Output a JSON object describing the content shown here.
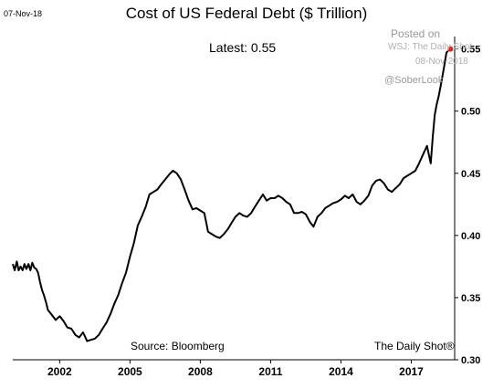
{
  "header": {
    "date_stamp": "07-Nov-18",
    "title": "Cost of US Federal Debt ($ Trillion)",
    "latest_label": "Latest:  0.55"
  },
  "footer": {
    "source": "Source: Bloomberg",
    "brand": "The Daily Shot®"
  },
  "watermark": {
    "line1": "Posted on",
    "line2": "WSJ: The Daily Shot",
    "line3": "08-Nov-2018",
    "line4": "@SoberLook"
  },
  "colors": {
    "line": "#000000",
    "last_point": "#e8201a",
    "axis": "#000000"
  },
  "chart_data": {
    "type": "line",
    "title": "Cost of US Federal Debt ($ Trillion)",
    "xlabel": "",
    "ylabel": "",
    "xlim": [
      2000.0,
      2018.85
    ],
    "ylim": [
      0.3,
      0.56
    ],
    "xticks": [
      2002,
      2005,
      2008,
      2011,
      2014,
      2017
    ],
    "xtick_labels": [
      "2002",
      "2005",
      "2008",
      "2011",
      "2014",
      "2017"
    ],
    "yticks": [
      0.3,
      0.35,
      0.4,
      0.45,
      0.5,
      0.55
    ],
    "ytick_labels": [
      "0.30",
      "0.35",
      "0.40",
      "0.45",
      "0.50",
      "0.55"
    ],
    "grid": false,
    "y_axis_side": "right",
    "latest": 0.55,
    "series": [
      {
        "x": [
          2000.0,
          2000.08,
          2000.17,
          2000.25,
          2000.33,
          2000.42,
          2000.5,
          2000.58,
          2000.67,
          2000.75,
          2000.83,
          2000.92,
          2001.0,
          2001.08,
          2001.17,
          2001.25,
          2001.33,
          2001.42,
          2001.5,
          2001.67,
          2001.83,
          2002.0,
          2002.17,
          2002.33,
          2002.5,
          2002.67,
          2002.83,
          2003.0,
          2003.17,
          2003.33,
          2003.5,
          2003.67,
          2003.83,
          2004.0,
          2004.17,
          2004.33,
          2004.5,
          2004.67,
          2004.83,
          2005.0,
          2005.17,
          2005.33,
          2005.5,
          2005.67,
          2005.83,
          2006.0,
          2006.17,
          2006.33,
          2006.5,
          2006.67,
          2006.83,
          2007.0,
          2007.17,
          2007.33,
          2007.5,
          2007.67,
          2007.83,
          2008.0,
          2008.17,
          2008.33,
          2008.5,
          2008.67,
          2008.83,
          2009.0,
          2009.17,
          2009.33,
          2009.5,
          2009.67,
          2009.83,
          2010.0,
          2010.17,
          2010.33,
          2010.5,
          2010.67,
          2010.83,
          2011.0,
          2011.17,
          2011.33,
          2011.5,
          2011.67,
          2011.83,
          2012.0,
          2012.17,
          2012.33,
          2012.5,
          2012.67,
          2012.83,
          2013.0,
          2013.17,
          2013.33,
          2013.5,
          2013.67,
          2013.83,
          2014.0,
          2014.17,
          2014.33,
          2014.5,
          2014.67,
          2014.83,
          2015.0,
          2015.17,
          2015.33,
          2015.5,
          2015.67,
          2015.83,
          2016.0,
          2016.17,
          2016.33,
          2016.5,
          2016.67,
          2016.83,
          2017.0,
          2017.17,
          2017.33,
          2017.5,
          2017.67,
          2017.83,
          2017.92,
          2018.0,
          2018.08,
          2018.17,
          2018.25,
          2018.33,
          2018.42,
          2018.5,
          2018.58,
          2018.67
        ],
        "y": [
          0.377,
          0.372,
          0.379,
          0.372,
          0.375,
          0.372,
          0.377,
          0.373,
          0.377,
          0.372,
          0.378,
          0.374,
          0.373,
          0.37,
          0.362,
          0.356,
          0.352,
          0.346,
          0.34,
          0.336,
          0.332,
          0.335,
          0.331,
          0.326,
          0.325,
          0.32,
          0.318,
          0.322,
          0.315,
          0.316,
          0.317,
          0.32,
          0.325,
          0.33,
          0.337,
          0.345,
          0.352,
          0.362,
          0.37,
          0.383,
          0.394,
          0.408,
          0.415,
          0.423,
          0.433,
          0.435,
          0.437,
          0.441,
          0.445,
          0.449,
          0.452,
          0.45,
          0.445,
          0.437,
          0.428,
          0.421,
          0.422,
          0.42,
          0.418,
          0.403,
          0.401,
          0.399,
          0.398,
          0.401,
          0.405,
          0.41,
          0.415,
          0.418,
          0.416,
          0.415,
          0.418,
          0.423,
          0.428,
          0.433,
          0.428,
          0.43,
          0.43,
          0.432,
          0.43,
          0.427,
          0.425,
          0.418,
          0.418,
          0.419,
          0.417,
          0.411,
          0.407,
          0.415,
          0.418,
          0.422,
          0.424,
          0.426,
          0.427,
          0.429,
          0.432,
          0.43,
          0.433,
          0.427,
          0.425,
          0.428,
          0.432,
          0.44,
          0.444,
          0.445,
          0.442,
          0.437,
          0.435,
          0.438,
          0.441,
          0.446,
          0.448,
          0.45,
          0.452,
          0.458,
          0.465,
          0.472,
          0.458,
          0.48,
          0.497,
          0.505,
          0.512,
          0.52,
          0.528,
          0.538,
          0.547,
          0.549,
          0.55
        ]
      }
    ]
  }
}
